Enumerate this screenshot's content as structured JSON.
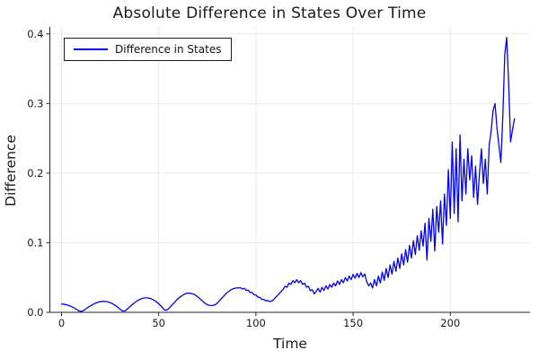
{
  "title": "Absolute Difference in States Over Time",
  "legend": {
    "label": "Difference in States",
    "position": "top-left"
  },
  "axes": {
    "x_label": "Time",
    "y_label": "Difference",
    "x_ticks": [
      {
        "v": 0,
        "label": "0"
      },
      {
        "v": 50,
        "label": "50"
      },
      {
        "v": 100,
        "label": "100"
      },
      {
        "v": 150,
        "label": "150"
      },
      {
        "v": 200,
        "label": "200"
      }
    ],
    "y_ticks": [
      {
        "v": 0,
        "label": "0.0"
      },
      {
        "v": 0.1,
        "label": "0.1"
      },
      {
        "v": 0.2,
        "label": "0.2"
      },
      {
        "v": 0.3,
        "label": "0.3"
      },
      {
        "v": 0.4,
        "label": "0.4"
      }
    ]
  },
  "colors": {
    "line": "#0000ff",
    "grid": "#e9e9e9",
    "spine": "#26262a",
    "text": "#1a1a1a"
  },
  "chart_data": {
    "type": "line",
    "title": "Absolute Difference in States Over Time",
    "xlabel": "Time",
    "ylabel": "Difference",
    "xlim": [
      -6,
      241
    ],
    "ylim": [
      0,
      0.41
    ],
    "grid": true,
    "legend_position": "top-left",
    "x_start": 0,
    "x_step": 1,
    "series": [
      {
        "name": "Difference in States",
        "color": "#0000ff",
        "values": [
          0.0119,
          0.0117,
          0.0112,
          0.0105,
          0.0095,
          0.0084,
          0.007,
          0.0054,
          0.0037,
          0.0019,
          0.0014,
          0.002,
          0.0039,
          0.0059,
          0.0078,
          0.0095,
          0.0111,
          0.0126,
          0.0138,
          0.0147,
          0.0154,
          0.0157,
          0.0158,
          0.0155,
          0.0148,
          0.0139,
          0.0126,
          0.0111,
          0.0093,
          0.0072,
          0.0049,
          0.0025,
          0.0018,
          0.0026,
          0.0052,
          0.0077,
          0.0102,
          0.0126,
          0.0147,
          0.0166,
          0.0182,
          0.0194,
          0.0203,
          0.0208,
          0.0208,
          0.0204,
          0.0196,
          0.0183,
          0.0167,
          0.0146,
          0.0122,
          0.0095,
          0.0065,
          0.0033,
          0.003,
          0.005,
          0.008,
          0.011,
          0.014,
          0.017,
          0.0198,
          0.022,
          0.024,
          0.0258,
          0.027,
          0.0275,
          0.0275,
          0.027,
          0.026,
          0.0245,
          0.0225,
          0.02,
          0.0175,
          0.015,
          0.0125,
          0.011,
          0.01,
          0.0098,
          0.01,
          0.011,
          0.013,
          0.016,
          0.019,
          0.022,
          0.025,
          0.028,
          0.03,
          0.032,
          0.0335,
          0.0345,
          0.035,
          0.0352,
          0.0355,
          0.0335,
          0.0345,
          0.0315,
          0.032,
          0.0285,
          0.0287,
          0.0252,
          0.025,
          0.0218,
          0.0215,
          0.0188,
          0.0185,
          0.0165,
          0.017,
          0.0155,
          0.016,
          0.018,
          0.021,
          0.024,
          0.027,
          0.03,
          0.033,
          0.0375,
          0.036,
          0.042,
          0.04,
          0.0455,
          0.0425,
          0.047,
          0.0425,
          0.0455,
          0.04,
          0.042,
          0.036,
          0.0375,
          0.031,
          0.0325,
          0.0265,
          0.03,
          0.0345,
          0.029,
          0.036,
          0.0315,
          0.038,
          0.0335,
          0.04,
          0.036,
          0.042,
          0.038,
          0.045,
          0.04,
          0.047,
          0.0425,
          0.05,
          0.045,
          0.052,
          0.047,
          0.0545,
          0.049,
          0.056,
          0.05,
          0.057,
          0.051,
          0.055,
          0.044,
          0.038,
          0.042,
          0.035,
          0.047,
          0.038,
          0.052,
          0.042,
          0.058,
          0.046,
          0.063,
          0.05,
          0.068,
          0.055,
          0.073,
          0.059,
          0.078,
          0.063,
          0.084,
          0.068,
          0.09,
          0.072,
          0.096,
          0.078,
          0.103,
          0.083,
          0.11,
          0.089,
          0.117,
          0.095,
          0.128,
          0.075,
          0.135,
          0.102,
          0.148,
          0.088,
          0.152,
          0.115,
          0.16,
          0.098,
          0.17,
          0.125,
          0.205,
          0.135,
          0.245,
          0.142,
          0.235,
          0.13,
          0.255,
          0.16,
          0.22,
          0.17,
          0.235,
          0.19,
          0.225,
          0.165,
          0.21,
          0.155,
          0.2,
          0.235,
          0.185,
          0.22,
          0.17,
          0.24,
          0.26,
          0.29,
          0.3,
          0.265,
          0.24,
          0.215,
          0.28,
          0.37,
          0.395,
          0.33,
          0.245,
          0.262,
          0.278
        ]
      }
    ]
  }
}
